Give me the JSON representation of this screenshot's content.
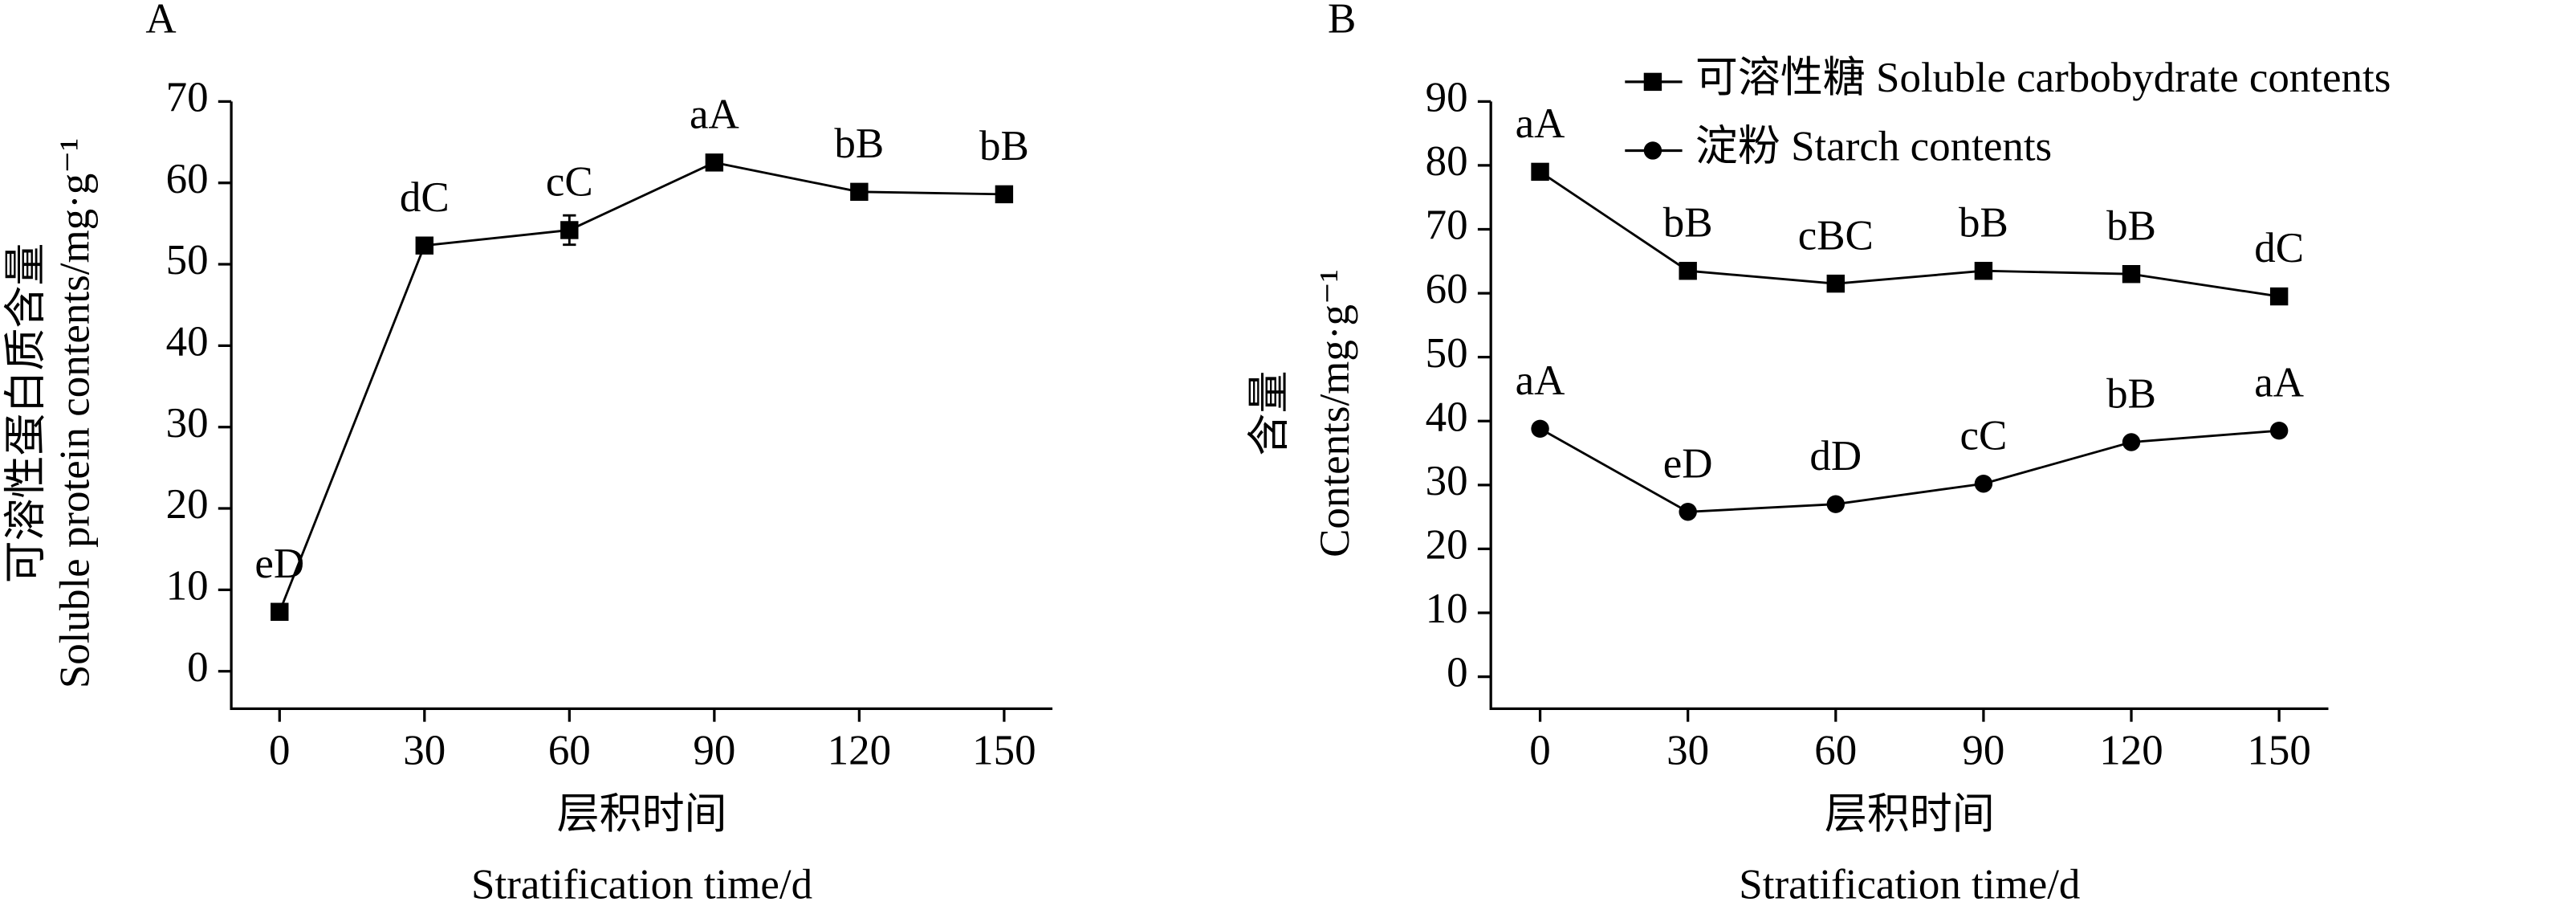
{
  "chart_data": [
    {
      "type": "line",
      "panel": "A",
      "ylabel": [
        "可溶性蛋白质含量",
        "Soluble protein contents/mg·g⁻¹"
      ],
      "xlabel": [
        "层积时间",
        "Stratification time/d"
      ],
      "x": [
        0,
        30,
        60,
        90,
        120,
        150
      ],
      "series": [
        {
          "color": "#000000",
          "marker": "square",
          "values": [
            7.3,
            52.3,
            54.2,
            62.5,
            58.9,
            58.6
          ],
          "errors": [
            0.5,
            0.8,
            1.8,
            0.8,
            0.7,
            0.6
          ],
          "labels": [
            "eD",
            "dC",
            "cC",
            "aA",
            "bB",
            "bB"
          ]
        }
      ],
      "xlim": [
        -10,
        160
      ],
      "xticks": [
        0,
        30,
        60,
        90,
        120,
        150
      ],
      "ylim": [
        -4.6,
        70
      ],
      "yticks": [
        0,
        10,
        20,
        30,
        40,
        50,
        60,
        70
      ]
    },
    {
      "type": "line",
      "panel": "B",
      "ylabel": [
        "含量",
        "Contents/mg·g⁻¹"
      ],
      "xlabel": [
        "层积时间",
        "Stratification time/d"
      ],
      "x": [
        0,
        30,
        60,
        90,
        120,
        150
      ],
      "series": [
        {
          "name": "可溶性糖 Soluble carbobydrate contents",
          "color": "#000000",
          "marker": "square",
          "values": [
            79,
            63.5,
            61.5,
            63.5,
            63,
            59.5
          ],
          "labels": [
            "aA",
            "bB",
            "cBC",
            "bB",
            "bB",
            "dC"
          ]
        },
        {
          "name": "淀粉 Starch contents",
          "color": "#000000",
          "marker": "circle",
          "values": [
            38.8,
            25.8,
            27,
            30.2,
            36.7,
            38.5
          ],
          "labels": [
            "aA",
            "eD",
            "dD",
            "cC",
            "bB",
            "aA"
          ]
        }
      ],
      "xlim": [
        -10,
        160
      ],
      "xticks": [
        0,
        30,
        60,
        90,
        120,
        150
      ],
      "ylim": [
        -5,
        90
      ],
      "yticks": [
        0,
        10,
        20,
        30,
        40,
        50,
        60,
        70,
        80,
        90
      ],
      "legend": "top-right"
    }
  ]
}
